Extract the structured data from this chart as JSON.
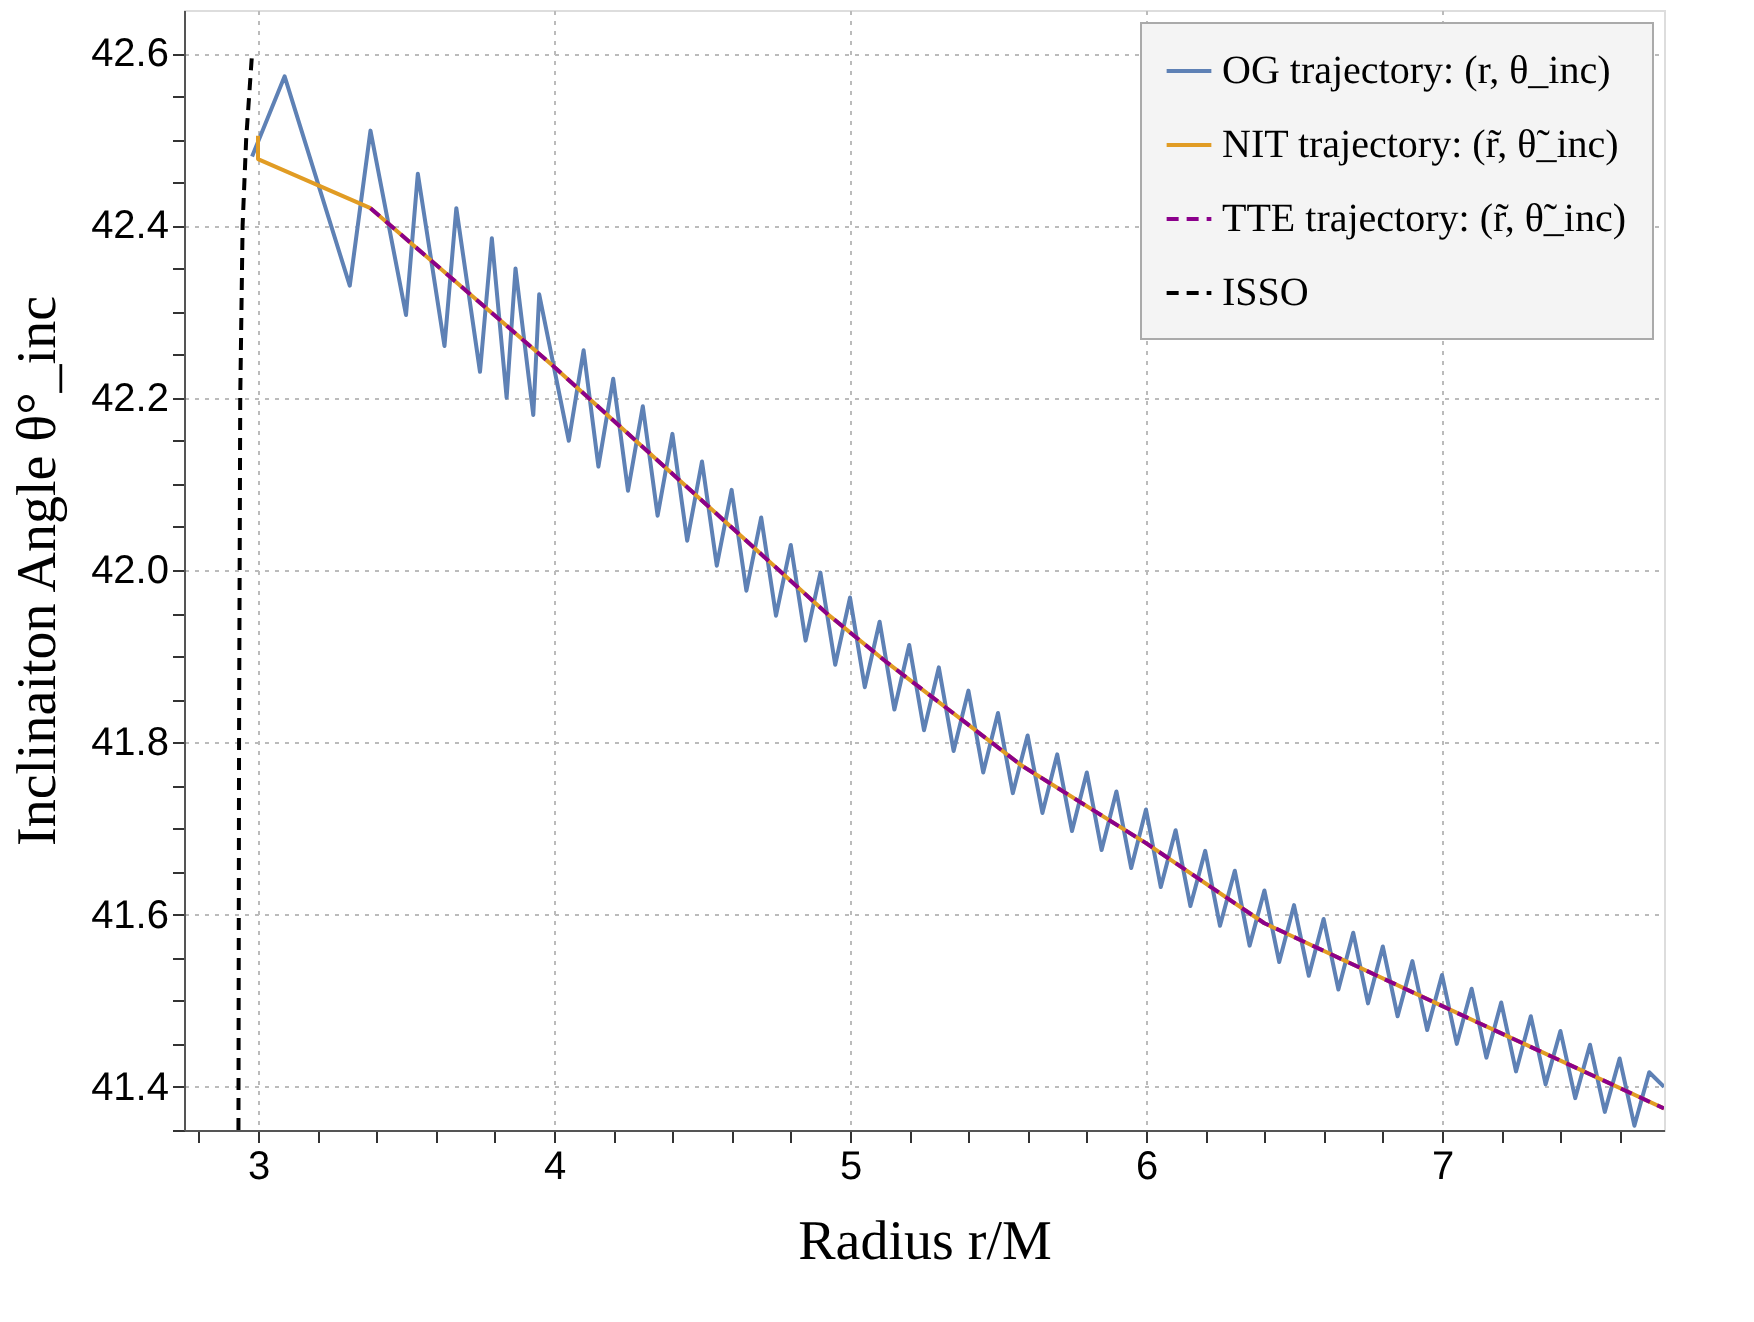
{
  "chart_data": {
    "type": "line",
    "xlabel": "Radius r/M",
    "ylabel": "Inclinaiton Angle θ°_inc",
    "xlim": [
      2.75,
      7.75
    ],
    "ylim": [
      41.35,
      42.65
    ],
    "xticks": [
      {
        "value": 2.8,
        "label": null
      },
      3,
      {
        "value": 3.2,
        "label": null
      },
      {
        "value": 3.4,
        "label": null
      },
      {
        "value": 3.6,
        "label": null
      },
      {
        "value": 3.8,
        "label": null
      },
      4,
      {
        "value": 4.2,
        "label": null
      },
      {
        "value": 4.4,
        "label": null
      },
      {
        "value": 4.6,
        "label": null
      },
      {
        "value": 4.8,
        "label": null
      },
      5,
      {
        "value": 5.2,
        "label": null
      },
      {
        "value": 5.4,
        "label": null
      },
      {
        "value": 5.6,
        "label": null
      },
      {
        "value": 5.8,
        "label": null
      },
      6,
      {
        "value": 6.2,
        "label": null
      },
      {
        "value": 6.4,
        "label": null
      },
      {
        "value": 6.6,
        "label": null
      },
      {
        "value": 6.8,
        "label": null
      },
      7,
      {
        "value": 7.2,
        "label": null
      },
      {
        "value": 7.4,
        "label": null
      },
      {
        "value": 7.6,
        "label": null
      }
    ],
    "yticks": [
      {
        "value": 41.35,
        "label": null
      },
      {
        "value": 41.4,
        "label": "41.4"
      },
      {
        "value": 41.45,
        "label": null
      },
      {
        "value": 41.5,
        "label": null
      },
      {
        "value": 41.55,
        "label": null
      },
      {
        "value": 41.6,
        "label": "41.6"
      },
      {
        "value": 41.65,
        "label": null
      },
      {
        "value": 41.7,
        "label": null
      },
      {
        "value": 41.75,
        "label": null
      },
      {
        "value": 41.8,
        "label": "41.8"
      },
      {
        "value": 41.85,
        "label": null
      },
      {
        "value": 41.9,
        "label": null
      },
      {
        "value": 41.95,
        "label": null
      },
      {
        "value": 42.0,
        "label": "42.0"
      },
      {
        "value": 42.05,
        "label": null
      },
      {
        "value": 42.1,
        "label": null
      },
      {
        "value": 42.15,
        "label": null
      },
      {
        "value": 42.2,
        "label": "42.2"
      },
      {
        "value": 42.25,
        "label": null
      },
      {
        "value": 42.3,
        "label": null
      },
      {
        "value": 42.35,
        "label": null
      },
      {
        "value": 42.4,
        "label": "42.4"
      },
      {
        "value": 42.45,
        "label": null
      },
      {
        "value": 42.5,
        "label": null
      },
      {
        "value": 42.55,
        "label": null
      },
      {
        "value": 42.6,
        "label": "42.6"
      }
    ],
    "grid": true,
    "legend": "top right",
    "marker": "none",
    "series": [
      {
        "name": "OG trajectory: (r, θ_inc)",
        "color": "#5e81b5",
        "line_style": "solid",
        "x": [
          2.98,
          3.09,
          3.31,
          3.38,
          3.5,
          3.54,
          3.63,
          3.67,
          3.75,
          3.79,
          3.84,
          3.87,
          3.93,
          3.95,
          4.05,
          4.1,
          4.15,
          4.2,
          4.25,
          4.3,
          4.35,
          4.4,
          4.45,
          4.5,
          4.55,
          4.6,
          4.65,
          4.7,
          4.75,
          4.8,
          4.85,
          4.9,
          4.95,
          5.0,
          5.05,
          5.1,
          5.15,
          5.2,
          5.25,
          5.3,
          5.35,
          5.4,
          5.45,
          5.5,
          5.55,
          5.6,
          5.65,
          5.7,
          5.75,
          5.8,
          5.85,
          5.9,
          5.95,
          6.0,
          6.05,
          6.1,
          6.15,
          6.2,
          6.25,
          6.3,
          6.35,
          6.4,
          6.45,
          6.5,
          6.55,
          6.6,
          6.65,
          6.7,
          6.75,
          6.8,
          6.85,
          6.9,
          6.95,
          7.0,
          7.05,
          7.1,
          7.15,
          7.2,
          7.25,
          7.3,
          7.35,
          7.4,
          7.45,
          7.5,
          7.55,
          7.6,
          7.65,
          7.7,
          7.75
        ],
        "values": [
          42.48,
          42.573,
          42.33,
          42.51,
          42.296,
          42.46,
          42.26,
          42.42,
          42.23,
          42.385,
          42.2,
          42.35,
          42.18,
          42.32,
          42.15,
          42.255,
          42.12,
          42.222,
          42.092,
          42.19,
          42.063,
          42.158,
          42.034,
          42.126,
          42.005,
          42.093,
          41.976,
          42.061,
          41.947,
          42.029,
          41.918,
          41.997,
          41.89,
          41.968,
          41.864,
          41.94,
          41.838,
          41.913,
          41.814,
          41.887,
          41.79,
          41.86,
          41.765,
          41.834,
          41.741,
          41.808,
          41.718,
          41.786,
          41.697,
          41.765,
          41.675,
          41.743,
          41.654,
          41.722,
          41.632,
          41.698,
          41.61,
          41.674,
          41.587,
          41.651,
          41.564,
          41.628,
          41.545,
          41.611,
          41.529,
          41.595,
          41.513,
          41.579,
          41.497,
          41.563,
          41.482,
          41.546,
          41.466,
          41.53,
          41.45,
          41.514,
          41.434,
          41.498,
          41.418,
          41.482,
          41.403,
          41.465,
          41.387,
          41.449,
          41.371,
          41.433,
          41.355,
          41.417,
          41.4
        ]
      },
      {
        "name": "NIT trajectory: (r̃, θ̃_inc)",
        "color": "#e19c24",
        "line_style": "solid",
        "x": [
          3.0,
          3.0,
          3.38,
          4.0,
          4.92,
          5.12,
          5.58,
          6.0,
          6.4,
          7.0,
          7.75
        ],
        "values": [
          42.504,
          42.477,
          42.42,
          42.236,
          41.95,
          41.894,
          41.773,
          41.683,
          41.59,
          41.494,
          41.375
        ]
      },
      {
        "name": "TTE trajectory: (r̃, θ̃_inc)",
        "color": "#8b008b",
        "line_style": "dashed",
        "x": [
          3.38,
          4.0,
          4.92,
          5.12,
          5.58,
          6.0,
          6.4,
          7.0,
          7.75
        ],
        "values": [
          42.42,
          42.236,
          41.95,
          41.894,
          41.773,
          41.683,
          41.59,
          41.494,
          41.375
        ]
      },
      {
        "name": "ISSO",
        "color": "#000000",
        "line_style": "dashed",
        "x": [
          2.934,
          2.936,
          2.94,
          2.948,
          2.96,
          2.98
        ],
        "values": [
          41.35,
          41.8,
          42.2,
          42.4,
          42.5,
          42.6
        ]
      }
    ]
  }
}
